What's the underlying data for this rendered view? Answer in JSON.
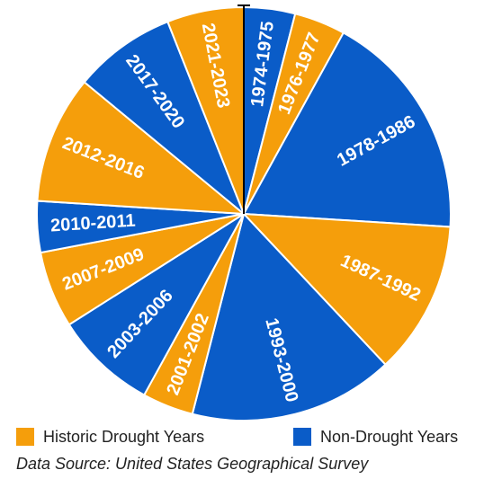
{
  "chart_data": {
    "type": "pie",
    "title": "",
    "series_colors": {
      "drought": "#F59E0B",
      "non_drought": "#0A5CC8"
    },
    "legend_placement": "bottom",
    "slices": [
      {
        "label": "1974-1975",
        "value": 2,
        "group": "non_drought"
      },
      {
        "label": "1976-1977",
        "value": 2,
        "group": "drought"
      },
      {
        "label": "1978-1986",
        "value": 9,
        "group": "non_drought"
      },
      {
        "label": "1987-1992",
        "value": 6,
        "group": "drought"
      },
      {
        "label": "1993-2000",
        "value": 8,
        "group": "non_drought"
      },
      {
        "label": "2001-2002",
        "value": 2,
        "group": "drought"
      },
      {
        "label": "2003-2006",
        "value": 4,
        "group": "non_drought"
      },
      {
        "label": "2007-2009",
        "value": 3,
        "group": "drought"
      },
      {
        "label": "2010-2011",
        "value": 2,
        "group": "non_drought"
      },
      {
        "label": "2012-2016",
        "value": 5,
        "group": "drought"
      },
      {
        "label": "2017-2020",
        "value": 4,
        "group": "non_drought"
      },
      {
        "label": "2021-2023",
        "value": 3,
        "group": "drought"
      }
    ]
  },
  "legend": {
    "drought_label": "Historic Drought Years",
    "non_drought_label": "Non-Drought Years"
  },
  "source_text": "Data Source: United States Geographical Survey"
}
